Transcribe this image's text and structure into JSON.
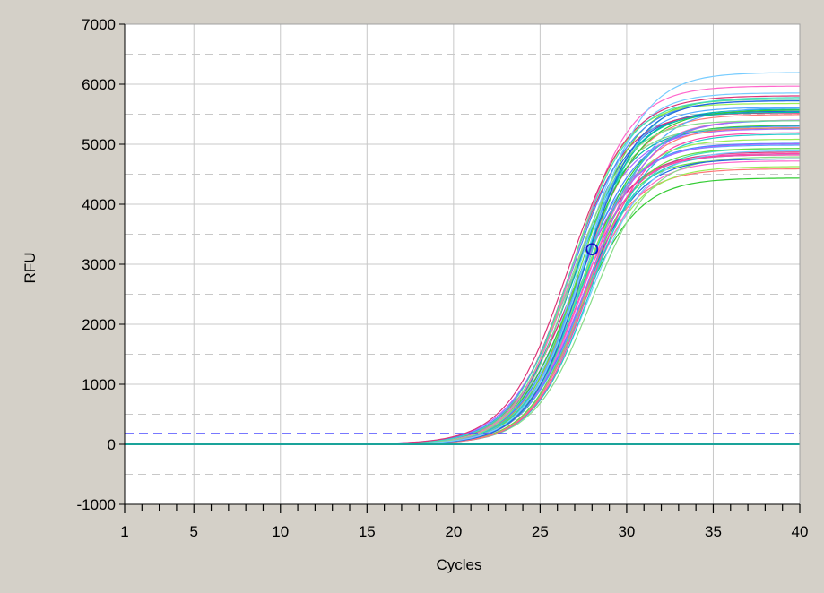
{
  "chart_data": {
    "type": "line",
    "title": "",
    "xlabel": "Cycles",
    "ylabel": "RFU",
    "xlim": [
      1,
      40
    ],
    "ylim": [
      -1000,
      7000
    ],
    "x_ticks": [
      1,
      5,
      10,
      15,
      20,
      25,
      30,
      35,
      40
    ],
    "y_ticks": [
      -1000,
      0,
      1000,
      2000,
      3000,
      4000,
      5000,
      6000,
      7000
    ],
    "grid": true,
    "legend": "none",
    "threshold": {
      "value": 180,
      "color": "#4b4bff"
    },
    "baseline": {
      "value": 0,
      "color": "#1aa39a"
    },
    "marker": {
      "x": 28,
      "y": 3250,
      "color": "#1414c8"
    },
    "curve_model": "sigmoid",
    "series_count": 48,
    "midpoint_range": [
      26.6,
      28.0
    ],
    "slope_range": [
      1.55,
      1.8
    ],
    "plateau_range": [
      4350,
      6250
    ],
    "colors": [
      "#33cc33",
      "#66dd44",
      "#ff44aa",
      "#4488ff",
      "#22cccc",
      "#ff7777",
      "#99ee55",
      "#aa66ff",
      "#00bbaa",
      "#55aaff",
      "#ff66cc",
      "#88dd88",
      "#2266dd",
      "#44ddbb",
      "#dd3377",
      "#77ccff"
    ]
  }
}
